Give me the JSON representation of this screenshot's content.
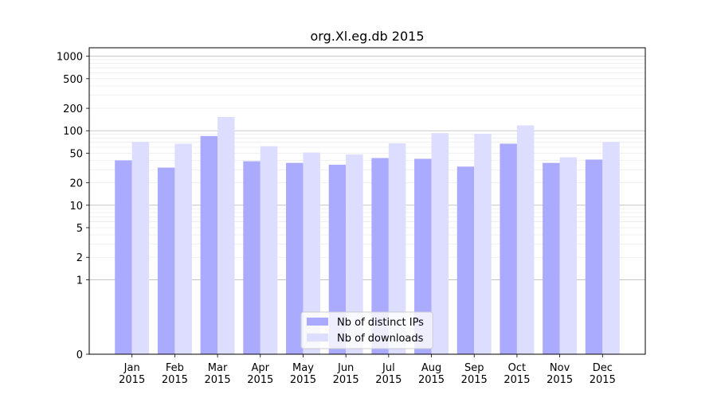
{
  "chart_data": {
    "type": "bar",
    "title": "org.Xl.eg.db 2015",
    "xlabel": "",
    "ylabel": "",
    "y_scale": "symlog",
    "ylim": [
      0,
      1300
    ],
    "y_ticks": [
      0,
      1,
      2,
      5,
      10,
      20,
      50,
      100,
      200,
      500,
      1000
    ],
    "categories": [
      "Jan\n2015",
      "Feb\n2015",
      "Mar\n2015",
      "Apr\n2015",
      "May\n2015",
      "Jun\n2015",
      "Jul\n2015",
      "Aug\n2015",
      "Sep\n2015",
      "Oct\n2015",
      "Nov\n2015",
      "Dec\n2015"
    ],
    "series": [
      {
        "name": "Nb of distinct IPs",
        "color": "#aaaaff",
        "values": [
          40,
          32,
          85,
          39,
          37,
          35,
          43,
          42,
          33,
          67,
          37,
          41
        ]
      },
      {
        "name": "Nb of downloads",
        "color": "#ddddff",
        "values": [
          71,
          67,
          153,
          62,
          51,
          48,
          68,
          93,
          91,
          118,
          44,
          71
        ]
      }
    ],
    "grid": true,
    "legend_position": "lower center"
  }
}
